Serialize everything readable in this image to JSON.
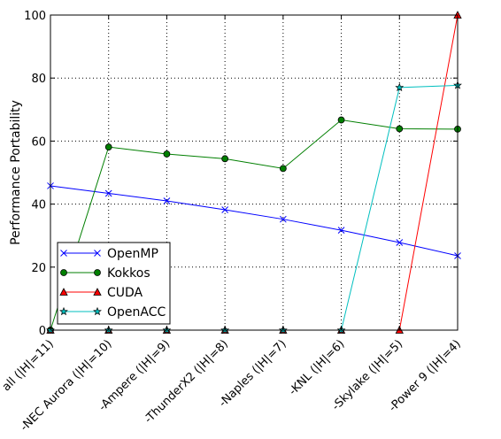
{
  "chart_data": {
    "type": "line",
    "title": "",
    "xlabel": "",
    "ylabel": "Performance Portability",
    "categories": [
      "all (|H|=11)",
      "-NEC Aurora (|H|=10)",
      "-Ampere (|H|=9)",
      "-ThunderX2 (|H|=8)",
      "-Naples (|H|=7)",
      "-KNL (|H|=6)",
      "-Skylake (|H|=5)",
      "-Power 9 (|H|=4)"
    ],
    "ylim": [
      0,
      100
    ],
    "yticks": [
      0,
      20,
      40,
      60,
      80,
      100
    ],
    "grid": true,
    "legend_position": "lower-left",
    "series": [
      {
        "name": "OpenMP",
        "color": "#0000ff",
        "marker": "x",
        "values": [
          45.8,
          43.4,
          41.0,
          38.2,
          35.2,
          31.7,
          27.8,
          23.6
        ]
      },
      {
        "name": "Kokkos",
        "color": "#007f00",
        "marker": "circle",
        "values": [
          0,
          58.1,
          55.9,
          54.4,
          51.3,
          66.7,
          63.9,
          63.8
        ]
      },
      {
        "name": "CUDA",
        "color": "#ff0000",
        "marker": "triangle",
        "values": [
          0,
          0,
          0,
          0,
          0,
          0,
          0,
          100
        ]
      },
      {
        "name": "OpenACC",
        "color": "#00bfbf",
        "marker": "star",
        "values": [
          0,
          0,
          0,
          0,
          0,
          0,
          77.0,
          77.7
        ]
      }
    ]
  }
}
